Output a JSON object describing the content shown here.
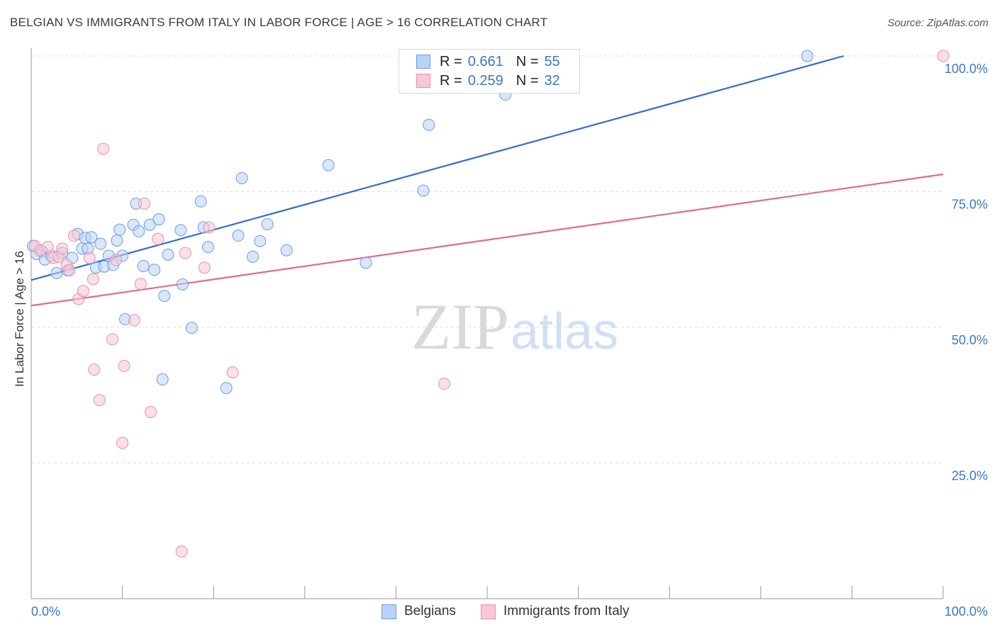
{
  "title": "BELGIAN VS IMMIGRANTS FROM ITALY IN LABOR FORCE | AGE > 16 CORRELATION CHART",
  "source": "Source: ZipAtlas.com",
  "colors": {
    "blue_fill": "#b9d2f7",
    "blue_stroke": "#6a9de8",
    "blue_line": "#2f6fcd",
    "pink_fill": "#f8c6d6",
    "pink_stroke": "#ec8eae",
    "pink_line": "#e06a93",
    "axis_text": "#3a78c9",
    "grid": "#dddddd"
  },
  "legend": {
    "rows": [
      {
        "r_label": "R =",
        "r_value": "0.661",
        "n_label": "N =",
        "n_value": "55"
      },
      {
        "r_label": "R =",
        "r_value": "0.259",
        "n_label": "N =",
        "n_value": "32"
      }
    ],
    "bottom": [
      "Belgians",
      "Immigrants from Italy"
    ]
  },
  "chart_data": {
    "type": "scatter",
    "title": "BELGIAN VS IMMIGRANTS FROM ITALY IN LABOR FORCE | AGE > 16 CORRELATION CHART",
    "xlabel": "",
    "ylabel": "In Labor Force | Age > 16",
    "xlim": [
      0,
      100
    ],
    "ylim": [
      0,
      100
    ],
    "x_tick_labels": [
      {
        "value": 0,
        "label": "0.0%"
      },
      {
        "value": 100,
        "label": "100.0%"
      }
    ],
    "y_tick_labels": [
      {
        "value": 25,
        "label": "25.0%"
      },
      {
        "value": 50,
        "label": "50.0%"
      },
      {
        "value": 75,
        "label": "75.0%"
      },
      {
        "value": 100,
        "label": "100.0%"
      }
    ],
    "grid": true,
    "legend_position": "top-center",
    "watermark": {
      "part1": "ZIP",
      "part2": "atlas"
    },
    "series": [
      {
        "name": "Belgians",
        "r": 0.661,
        "n": 55,
        "trend": {
          "x": [
            0,
            89.1
          ],
          "y": [
            58.7,
            100
          ]
        },
        "points": [
          [
            0.2,
            65.0
          ],
          [
            0.6,
            63.5
          ],
          [
            1.2,
            64.0
          ],
          [
            1.5,
            62.5
          ],
          [
            2.2,
            63.2
          ],
          [
            2.8,
            60.0
          ],
          [
            3.4,
            63.7
          ],
          [
            4.0,
            60.5
          ],
          [
            4.5,
            62.8
          ],
          [
            5.1,
            67.2
          ],
          [
            5.6,
            64.5
          ],
          [
            5.9,
            66.5
          ],
          [
            6.2,
            64.5
          ],
          [
            6.6,
            66.6
          ],
          [
            7.1,
            61.0
          ],
          [
            7.6,
            65.4
          ],
          [
            8.0,
            61.2
          ],
          [
            8.5,
            63.2
          ],
          [
            9.0,
            61.5
          ],
          [
            9.4,
            66.0
          ],
          [
            9.7,
            68.0
          ],
          [
            10.0,
            63.2
          ],
          [
            10.3,
            51.5
          ],
          [
            11.2,
            68.9
          ],
          [
            11.5,
            72.8
          ],
          [
            11.8,
            67.7
          ],
          [
            12.3,
            61.3
          ],
          [
            13.0,
            68.9
          ],
          [
            13.5,
            60.6
          ],
          [
            14.0,
            69.9
          ],
          [
            14.6,
            55.8
          ],
          [
            15.0,
            63.4
          ],
          [
            14.4,
            40.4
          ],
          [
            16.4,
            67.9
          ],
          [
            16.6,
            57.9
          ],
          [
            17.6,
            49.9
          ],
          [
            18.6,
            73.2
          ],
          [
            18.9,
            68.4
          ],
          [
            19.4,
            64.8
          ],
          [
            21.4,
            38.8
          ],
          [
            22.7,
            66.9
          ],
          [
            23.1,
            77.5
          ],
          [
            24.3,
            63.0
          ],
          [
            25.1,
            65.9
          ],
          [
            25.9,
            69.0
          ],
          [
            28.0,
            64.2
          ],
          [
            32.6,
            79.9
          ],
          [
            36.7,
            61.9
          ],
          [
            43.0,
            75.2
          ],
          [
            43.6,
            87.3
          ],
          [
            52.0,
            100.0
          ],
          [
            52.4,
            100.0
          ],
          [
            52.2,
            100.0
          ],
          [
            52.0,
            92.9
          ],
          [
            85.1,
            100.0
          ]
        ]
      },
      {
        "name": "Immigrants from Italy",
        "r": 0.259,
        "n": 32,
        "trend": {
          "x": [
            0,
            100
          ],
          "y": [
            54.0,
            78.2
          ]
        },
        "points": [
          [
            0.4,
            65.0
          ],
          [
            1.0,
            64.2
          ],
          [
            1.8,
            64.8
          ],
          [
            2.4,
            62.8
          ],
          [
            3.0,
            63.0
          ],
          [
            3.4,
            64.5
          ],
          [
            3.9,
            61.5
          ],
          [
            4.2,
            60.5
          ],
          [
            4.7,
            66.9
          ],
          [
            5.2,
            55.2
          ],
          [
            5.7,
            56.7
          ],
          [
            6.4,
            62.8
          ],
          [
            6.8,
            58.9
          ],
          [
            6.9,
            42.2
          ],
          [
            7.5,
            36.6
          ],
          [
            7.9,
            82.9
          ],
          [
            8.9,
            47.8
          ],
          [
            9.3,
            62.4
          ],
          [
            10.0,
            28.7
          ],
          [
            10.2,
            42.9
          ],
          [
            11.3,
            51.3
          ],
          [
            12.4,
            72.8
          ],
          [
            13.1,
            34.4
          ],
          [
            13.9,
            66.3
          ],
          [
            16.5,
            8.7
          ],
          [
            16.9,
            63.7
          ],
          [
            19.0,
            61.0
          ],
          [
            19.5,
            68.4
          ],
          [
            22.1,
            41.7
          ],
          [
            45.3,
            39.6
          ],
          [
            100.0,
            100.0
          ],
          [
            12.0,
            58.0
          ]
        ]
      }
    ]
  }
}
